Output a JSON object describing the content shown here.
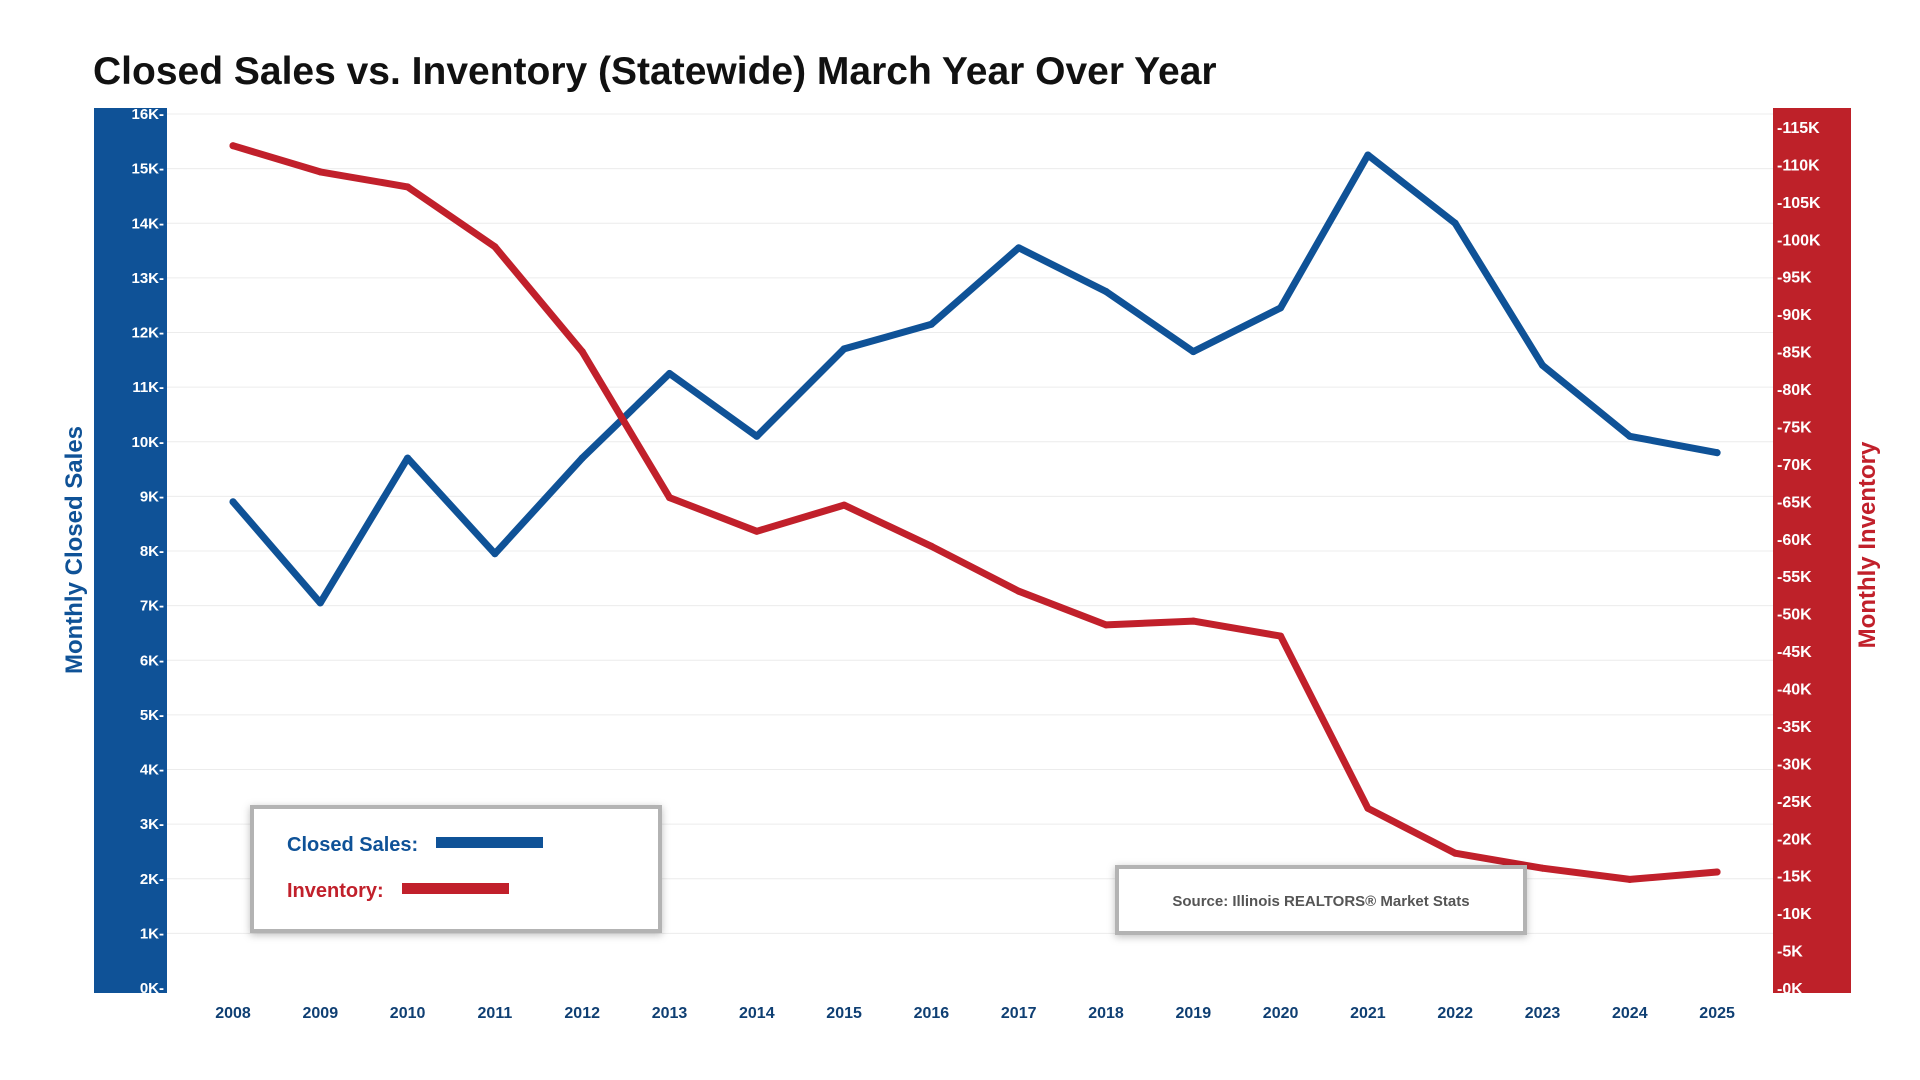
{
  "title": "Closed Sales vs. Inventory (Statewide) March Year Over Year",
  "colors": {
    "closed_sales": "#0f5297",
    "inventory": "#c1202b",
    "left_band": "#0f5297",
    "right_band": "#be2129"
  },
  "legend": {
    "closed_sales_label": "Closed Sales:",
    "inventory_label": "Inventory:"
  },
  "source": "Source: Illinois REALTORS® Market Stats",
  "chart_data": {
    "type": "line",
    "title": "Closed Sales vs. Inventory (Statewide) March Year Over Year",
    "x": [
      "2008",
      "2009",
      "2010",
      "2011",
      "2012",
      "2013",
      "2014",
      "2015",
      "2016",
      "2017",
      "2018",
      "2019",
      "2020",
      "2021",
      "2022",
      "2023",
      "2024",
      "2025"
    ],
    "series": [
      {
        "name": "Closed Sales",
        "axis": "left",
        "values": [
          8900,
          7050,
          9700,
          7950,
          9700,
          11250,
          10100,
          11700,
          12150,
          13550,
          12750,
          11650,
          12450,
          15250,
          14000,
          11400,
          10100,
          9800
        ]
      },
      {
        "name": "Inventory",
        "axis": "right",
        "values": [
          112500,
          109000,
          107000,
          99000,
          85000,
          65500,
          61000,
          64500,
          59000,
          53000,
          48500,
          49000,
          47000,
          24000,
          18000,
          16000,
          14500,
          15500
        ]
      }
    ],
    "y_left": {
      "label": "Monthly Closed Sales",
      "range": [
        0,
        16000
      ],
      "ticks": [
        "0K-",
        "1K-",
        "2K-",
        "3K-",
        "4K-",
        "5K-",
        "6K-",
        "7K-",
        "8K-",
        "9K-",
        "10K-",
        "11K-",
        "12K-",
        "13K-",
        "14K-",
        "15K-",
        "16K-"
      ]
    },
    "y_right": {
      "label": "Monthly Inventory",
      "range": [
        0,
        117500
      ],
      "ticks": [
        "-0K",
        "-5K",
        "-10K",
        "-15K",
        "-20K",
        "-25K",
        "-30K",
        "-35K",
        "-40K",
        "-45K",
        "-50K",
        "-55K",
        "-60K",
        "-65K",
        "-70K",
        "-75K",
        "-80K",
        "-85K",
        "-90K",
        "-95K",
        "-100K",
        "-105K",
        "-110K",
        "-115K"
      ]
    },
    "grid": true,
    "legend_position": "bottom-left"
  }
}
